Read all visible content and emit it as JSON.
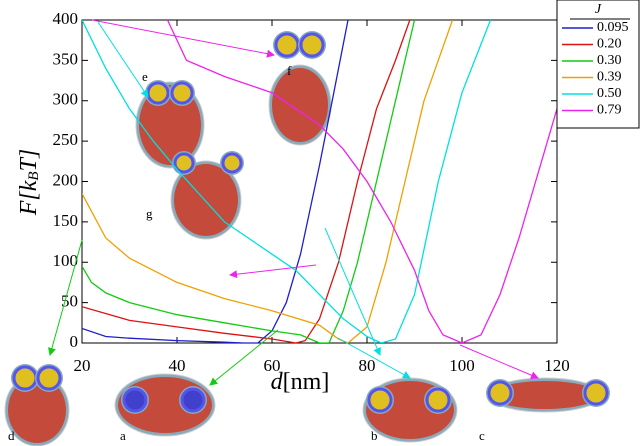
{
  "chart_data": {
    "type": "line",
    "xlabel_parts": [
      "d",
      "[nm]"
    ],
    "ylabel_parts": [
      "F",
      "[k",
      "B",
      "T]"
    ],
    "legend_title": "J",
    "xlim": [
      20,
      120
    ],
    "ylim": [
      0,
      400
    ],
    "xticks": [
      20,
      40,
      60,
      80,
      100,
      120
    ],
    "yticks": [
      0,
      50,
      100,
      150,
      200,
      250,
      300,
      350,
      400
    ],
    "reference_line": 0,
    "series": [
      {
        "name": "0.095",
        "color": "#1f1fcc",
        "x": [
          20,
          25,
          30,
          40,
          50,
          54,
          57,
          60,
          63,
          66,
          70,
          73,
          76
        ],
        "values": [
          18,
          8,
          6,
          3,
          1,
          0,
          0,
          15,
          50,
          110,
          220,
          310,
          400
        ]
      },
      {
        "name": "0.20",
        "color": "#dd1111",
        "x": [
          20,
          30,
          40,
          50,
          60,
          63,
          65,
          67,
          70,
          74,
          78,
          82,
          86,
          89
        ],
        "values": [
          45,
          28,
          20,
          12,
          5,
          2,
          0,
          3,
          30,
          100,
          200,
          290,
          350,
          400
        ]
      },
      {
        "name": "0.30",
        "color": "#11cc11",
        "x": [
          20,
          22,
          25,
          30,
          40,
          50,
          60,
          66,
          70,
          72,
          75,
          78,
          82,
          86,
          90
        ],
        "values": [
          95,
          75,
          62,
          50,
          35,
          25,
          15,
          10,
          0,
          0,
          40,
          100,
          200,
          300,
          400
        ]
      },
      {
        "name": "0.39",
        "color": "#f0a000",
        "x": [
          20,
          25,
          30,
          40,
          50,
          60,
          70,
          74,
          76,
          80,
          84,
          88,
          92,
          98
        ],
        "values": [
          185,
          130,
          105,
          75,
          55,
          40,
          22,
          5,
          0,
          20,
          100,
          200,
          300,
          400
        ]
      },
      {
        "name": "0.50",
        "color": "#00e0e0",
        "x": [
          20,
          25,
          30,
          35,
          40,
          50,
          55,
          60,
          65,
          70,
          75,
          80,
          83,
          86,
          90,
          95,
          100,
          106
        ],
        "values": [
          400,
          340,
          290,
          250,
          215,
          150,
          130,
          110,
          90,
          60,
          30,
          8,
          0,
          5,
          60,
          200,
          310,
          400
        ]
      },
      {
        "name": "0.79",
        "color": "#ee22ee",
        "x": [
          38,
          42,
          50,
          60,
          65,
          70,
          75,
          80,
          85,
          90,
          93,
          96,
          100,
          104,
          108,
          112,
          116,
          120
        ],
        "values": [
          400,
          350,
          330,
          310,
          290,
          270,
          240,
          200,
          150,
          90,
          40,
          10,
          0,
          10,
          60,
          130,
          210,
          290
        ]
      }
    ],
    "annotations": [
      "e",
      "f",
      "g",
      "d",
      "a",
      "b",
      "c"
    ]
  }
}
